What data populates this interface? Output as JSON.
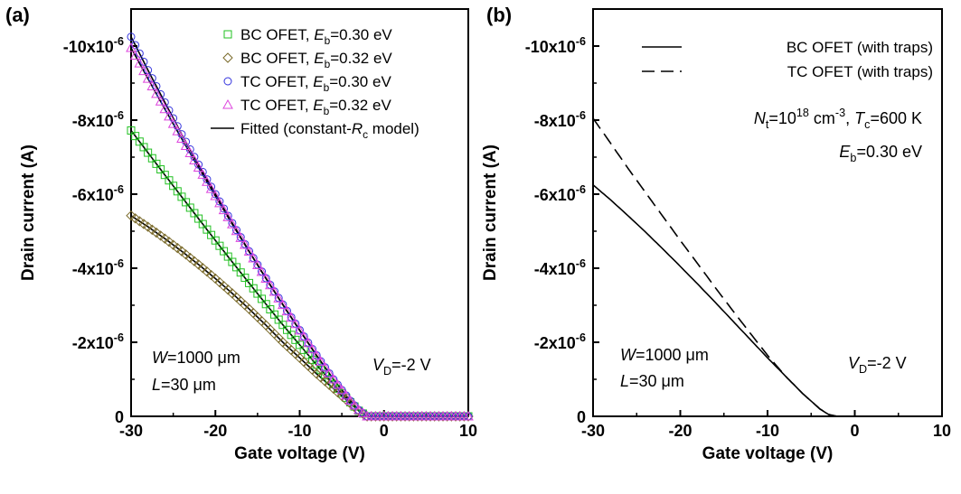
{
  "chart_data": [
    {
      "panel_label": "(a)",
      "type": "line",
      "xlabel": "Gate voltage (V)",
      "ylabel": "Drain current (A)",
      "xlim": [
        -30,
        10
      ],
      "ylim": [
        -11,
        0
      ],
      "x_ticks": [
        -30,
        -20,
        -10,
        0,
        10
      ],
      "y_ticks": [
        {
          "value": 0,
          "base": "0",
          "exp": ""
        },
        {
          "value": -2,
          "base": "-2x10",
          "exp": "-6"
        },
        {
          "value": -4,
          "base": "-4x10",
          "exp": "-6"
        },
        {
          "value": -6,
          "base": "-6x10",
          "exp": "-6"
        },
        {
          "value": -8,
          "base": "-8x10",
          "exp": "-6"
        },
        {
          "value": -10,
          "base": "-10x10",
          "exp": "-6"
        }
      ],
      "y_unit_scale": "1e-6",
      "series": [
        {
          "name_pre": "BC OFET, ",
          "name_it": "E",
          "name_sub": "b",
          "name_post": "=0.30 eV",
          "marker": "square",
          "color": "#22c022",
          "x": [
            -30,
            -28,
            -26,
            -24,
            -22,
            -20,
            -18,
            -16,
            -14,
            -12,
            -10,
            -8,
            -6,
            -4,
            -3,
            -2,
            0,
            2,
            4,
            6,
            8,
            10
          ],
          "y": [
            -7.72,
            -7.12,
            -6.52,
            -5.93,
            -5.34,
            -4.75,
            -4.17,
            -3.6,
            -3.03,
            -2.47,
            -1.93,
            -1.39,
            -0.87,
            -0.38,
            -0.15,
            0,
            0,
            0,
            0,
            0,
            0,
            0
          ]
        },
        {
          "name_pre": "BC OFET, ",
          "name_it": "E",
          "name_sub": "b",
          "name_post": "=0.32 eV",
          "marker": "diamond",
          "color": "#7a6a2a",
          "x": [
            -30,
            -28,
            -26,
            -24,
            -22,
            -20,
            -18,
            -16,
            -14,
            -12,
            -10,
            -8,
            -6,
            -4,
            -3,
            -2,
            0,
            2,
            4,
            6,
            8,
            10
          ],
          "y": [
            -5.42,
            -5.12,
            -4.8,
            -4.46,
            -4.1,
            -3.72,
            -3.32,
            -2.9,
            -2.46,
            -2.0,
            -1.58,
            -1.15,
            -0.75,
            -0.35,
            -0.15,
            0,
            0,
            0,
            0,
            0,
            0,
            0
          ]
        },
        {
          "name_pre": "TC OFET, ",
          "name_it": "E",
          "name_sub": "b",
          "name_post": "=0.30 eV",
          "marker": "circle",
          "color": "#3333dd",
          "x": [
            -30,
            -28,
            -26,
            -24,
            -22,
            -20,
            -18,
            -16,
            -14,
            -12,
            -10,
            -8,
            -6,
            -4,
            -3,
            -2,
            0,
            2,
            4,
            6,
            8,
            10
          ],
          "y": [
            -10.25,
            -9.35,
            -8.48,
            -7.62,
            -6.8,
            -6.0,
            -5.22,
            -4.46,
            -3.73,
            -3.02,
            -2.33,
            -1.65,
            -1.0,
            -0.42,
            -0.17,
            0,
            0,
            0,
            0,
            0,
            0,
            0
          ]
        },
        {
          "name_pre": "TC OFET, ",
          "name_it": "E",
          "name_sub": "b",
          "name_post": "=0.32 eV",
          "marker": "triangle",
          "color": "#dd44dd",
          "x": [
            -30,
            -28,
            -26,
            -24,
            -22,
            -20,
            -18,
            -16,
            -14,
            -12,
            -10,
            -8,
            -6,
            -4,
            -3,
            -2,
            0,
            2,
            4,
            6,
            8,
            10
          ],
          "y": [
            -9.95,
            -9.12,
            -8.3,
            -7.5,
            -6.72,
            -5.95,
            -5.19,
            -4.45,
            -3.72,
            -3.01,
            -2.32,
            -1.64,
            -1.0,
            -0.42,
            -0.17,
            0,
            0,
            0,
            0,
            0,
            0,
            0
          ]
        }
      ],
      "fit_legend": {
        "pre": "Fitted (constant-",
        "it": "R",
        "sub": "c",
        "post": " model)"
      },
      "annotations": [
        {
          "it": "W",
          "sub": "",
          "text": "=1000 μm",
          "pos": "bottom-left-upper"
        },
        {
          "it": "L",
          "sub": "",
          "text": "=30 μm",
          "pos": "bottom-left-lower"
        },
        {
          "it": "V",
          "sub": "D",
          "text": "=-2 V",
          "pos": "bottom-right"
        }
      ]
    },
    {
      "panel_label": "(b)",
      "type": "line",
      "xlabel": "Gate voltage (V)",
      "ylabel": "Drain current (A)",
      "xlim": [
        -30,
        10
      ],
      "ylim": [
        -11,
        0
      ],
      "x_ticks": [
        -30,
        -20,
        -10,
        0,
        10
      ],
      "y_ticks": [
        {
          "value": 0,
          "base": "0",
          "exp": ""
        },
        {
          "value": -2,
          "base": "-2x10",
          "exp": "-6"
        },
        {
          "value": -4,
          "base": "-4x10",
          "exp": "-6"
        },
        {
          "value": -6,
          "base": "-6x10",
          "exp": "-6"
        },
        {
          "value": -8,
          "base": "-8x10",
          "exp": "-6"
        },
        {
          "value": -10,
          "base": "-10x10",
          "exp": "-6"
        }
      ],
      "y_unit_scale": "1e-6",
      "series": [
        {
          "name": "BC OFET (with traps)",
          "style": "solid",
          "color": "#000000",
          "x": [
            -30,
            -28,
            -26,
            -24,
            -22,
            -20,
            -18,
            -16,
            -14,
            -12,
            -10,
            -8,
            -6,
            -4,
            -3,
            -2,
            0,
            2,
            4,
            6,
            8,
            10
          ],
          "y": [
            -6.25,
            -5.85,
            -5.42,
            -4.98,
            -4.52,
            -4.05,
            -3.57,
            -3.08,
            -2.58,
            -2.08,
            -1.58,
            -1.1,
            -0.62,
            -0.2,
            -0.05,
            0,
            0,
            0,
            0,
            0,
            0,
            0
          ]
        },
        {
          "name": "TC OFET (with traps)",
          "style": "dashed",
          "color": "#000000",
          "x": [
            -30,
            -28,
            -26,
            -24,
            -22,
            -20,
            -18,
            -16,
            -14,
            -12,
            -10,
            -8,
            -6,
            -4,
            -3,
            -2,
            0,
            2,
            4,
            6,
            8,
            10
          ],
          "y": [
            -8.05,
            -7.38,
            -6.7,
            -6.05,
            -5.4,
            -4.75,
            -4.12,
            -3.48,
            -2.86,
            -2.25,
            -1.65,
            -1.1,
            -0.62,
            -0.2,
            -0.05,
            0,
            0,
            0,
            0,
            0,
            0,
            0
          ]
        }
      ],
      "annotations": [
        {
          "it": "W",
          "sub": "",
          "text": "=1000 μm",
          "pos": "bottom-left-upper"
        },
        {
          "it": "L",
          "sub": "",
          "text": "=30 μm",
          "pos": "bottom-left-lower"
        },
        {
          "it": "V",
          "sub": "D",
          "text": "=-2 V",
          "pos": "bottom-right"
        }
      ],
      "params": {
        "nt_it": "N",
        "nt_sub": "t",
        "nt_eq": "=10",
        "nt_exp": "18",
        "nt_unit": " cm",
        "nt_unit_exp": "-3",
        "sep": ", ",
        "tc_it": "T",
        "tc_sub": "c",
        "tc_eq": "=600 K",
        "eb_it": "E",
        "eb_sub": "b",
        "eb_eq": "=0.30 eV"
      }
    }
  ]
}
